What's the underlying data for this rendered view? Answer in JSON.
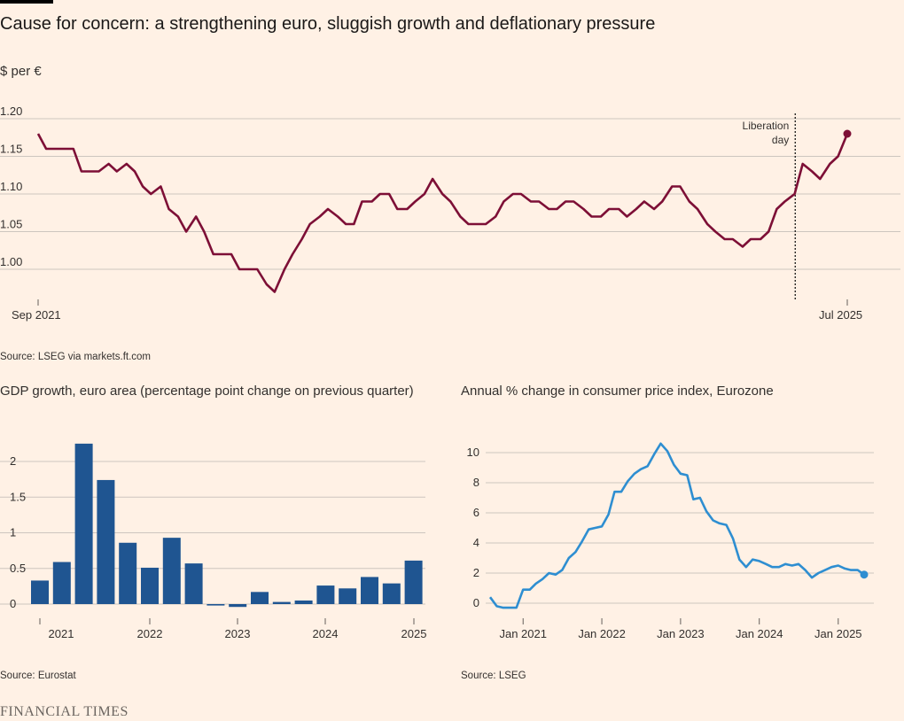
{
  "title": "Cause for concern: a strengthening euro, sluggish growth and deflationary pressure",
  "brand": "FINANCIAL TIMES",
  "colors": {
    "background": "#fff1e5",
    "fx_line": "#7d0f36",
    "gdp_bar": "#1f5591",
    "cpi_line": "#2e8ed1",
    "grid": "#cdc6bf"
  },
  "fx": {
    "unit_label": "$ per €",
    "source": "Source: LSEG via markets.ft.com",
    "annotation": "Liberation day",
    "annotation_lines": [
      "Liberation",
      "day"
    ],
    "y_ticks": [
      "1.20",
      "1.15",
      "1.10",
      "1.05",
      "1.00"
    ],
    "x_ticks": [
      "Sep 2021",
      "Jul 2025"
    ]
  },
  "gdp": {
    "title": "GDP growth, euro area (percentage point change on previous quarter)",
    "source": "Source: Eurostat",
    "y_ticks": [
      "2",
      "1.5",
      "1",
      "0.5",
      "0"
    ],
    "x_ticks": [
      "2021",
      "2022",
      "2023",
      "2024",
      "2025"
    ]
  },
  "cpi": {
    "title": "Annual % change in consumer price index, Eurozone",
    "source": "Source: LSEG",
    "y_ticks": [
      "10",
      "8",
      "6",
      "4",
      "2",
      "0"
    ],
    "x_ticks": [
      "Jan 2021",
      "Jan 2022",
      "Jan 2023",
      "Jan 2024",
      "Jan 2025"
    ]
  },
  "chart_data": [
    {
      "type": "line",
      "title": "Cause for concern: a strengthening euro, sluggish growth and deflationary pressure",
      "ylabel": "$ per €",
      "ylim": [
        0.97,
        1.2
      ],
      "xlim": [
        "2021-09-01",
        "2025-07-01"
      ],
      "grid": true,
      "annotations": [
        {
          "text": "Liberation day",
          "date": "2025-04-02",
          "style": "dotted vertical line"
        }
      ],
      "series": [
        {
          "x": [
            "2021-09-01",
            "2021-09-15",
            "2021-10-01",
            "2021-10-15",
            "2021-11-01",
            "2021-11-15",
            "2021-12-01",
            "2021-12-15",
            "2022-01-01",
            "2022-01-15",
            "2022-02-01",
            "2022-02-15",
            "2022-03-01",
            "2022-03-15",
            "2022-04-01",
            "2022-04-15",
            "2022-05-01",
            "2022-05-15",
            "2022-06-01",
            "2022-06-15",
            "2022-07-01",
            "2022-07-15",
            "2022-08-01",
            "2022-08-15",
            "2022-09-01",
            "2022-09-15",
            "2022-10-01",
            "2022-10-15",
            "2022-11-01",
            "2022-11-15",
            "2022-12-01",
            "2022-12-15",
            "2023-01-01",
            "2023-01-15",
            "2023-02-01",
            "2023-02-15",
            "2023-03-01",
            "2023-03-15",
            "2023-04-01",
            "2023-04-15",
            "2023-05-01",
            "2023-05-15",
            "2023-06-01",
            "2023-06-15",
            "2023-07-01",
            "2023-07-15",
            "2023-08-01",
            "2023-08-15",
            "2023-09-01",
            "2023-09-15",
            "2023-10-01",
            "2023-10-15",
            "2023-11-01",
            "2023-11-15",
            "2023-12-01",
            "2023-12-15",
            "2024-01-01",
            "2024-01-15",
            "2024-02-01",
            "2024-02-15",
            "2024-03-01",
            "2024-03-15",
            "2024-04-01",
            "2024-04-15",
            "2024-05-01",
            "2024-05-15",
            "2024-06-01",
            "2024-06-15",
            "2024-07-01",
            "2024-07-15",
            "2024-08-01",
            "2024-08-15",
            "2024-09-01",
            "2024-09-15",
            "2024-10-01",
            "2024-10-15",
            "2024-11-01",
            "2024-11-15",
            "2024-12-01",
            "2024-12-15",
            "2025-01-01",
            "2025-01-15",
            "2025-02-01",
            "2025-02-15",
            "2025-03-01",
            "2025-03-15",
            "2025-04-01",
            "2025-04-15",
            "2025-05-01",
            "2025-05-15",
            "2025-06-01",
            "2025-06-15",
            "2025-07-01"
          ],
          "y": [
            1.18,
            1.16,
            1.16,
            1.16,
            1.16,
            1.13,
            1.13,
            1.13,
            1.14,
            1.13,
            1.14,
            1.13,
            1.11,
            1.1,
            1.11,
            1.08,
            1.07,
            1.05,
            1.07,
            1.05,
            1.02,
            1.02,
            1.02,
            1.0,
            1.0,
            1.0,
            0.98,
            0.97,
            1.0,
            1.02,
            1.04,
            1.06,
            1.07,
            1.08,
            1.07,
            1.06,
            1.06,
            1.09,
            1.09,
            1.1,
            1.1,
            1.08,
            1.08,
            1.09,
            1.1,
            1.12,
            1.1,
            1.09,
            1.07,
            1.06,
            1.06,
            1.06,
            1.07,
            1.09,
            1.1,
            1.1,
            1.09,
            1.09,
            1.08,
            1.08,
            1.09,
            1.09,
            1.08,
            1.07,
            1.07,
            1.08,
            1.08,
            1.07,
            1.08,
            1.09,
            1.08,
            1.09,
            1.11,
            1.11,
            1.09,
            1.08,
            1.06,
            1.05,
            1.04,
            1.04,
            1.03,
            1.04,
            1.04,
            1.05,
            1.08,
            1.09,
            1.1,
            1.14,
            1.13,
            1.12,
            1.14,
            1.15,
            1.18
          ]
        }
      ]
    },
    {
      "type": "bar",
      "title": "GDP growth, euro area (percentage point change on previous quarter)",
      "ylim": [
        0,
        2.25
      ],
      "grid": true,
      "categories": [
        "2020 Q4",
        "2021 Q1",
        "2021 Q2",
        "2021 Q3",
        "2021 Q4",
        "2022 Q1",
        "2022 Q2",
        "2022 Q3",
        "2022 Q4",
        "2023 Q1",
        "2023 Q2",
        "2023 Q3",
        "2023 Q4",
        "2024 Q1",
        "2024 Q2",
        "2024 Q3",
        "2024 Q4",
        "2025 Q1"
      ],
      "values": [
        0.33,
        0.59,
        2.25,
        1.74,
        0.86,
        0.51,
        0.93,
        0.57,
        -0.02,
        -0.04,
        0.17,
        0.03,
        0.05,
        0.26,
        0.22,
        0.38,
        0.29,
        0.61
      ]
    },
    {
      "type": "line",
      "title": "Annual % change in consumer price index, Eurozone",
      "ylim": [
        0,
        10.6
      ],
      "xlim": [
        "2020-08",
        "2025-05"
      ],
      "grid": true,
      "series": [
        {
          "x": [
            "2020-08",
            "2020-09",
            "2020-10",
            "2020-11",
            "2020-12",
            "2021-01",
            "2021-02",
            "2021-03",
            "2021-04",
            "2021-05",
            "2021-06",
            "2021-07",
            "2021-08",
            "2021-09",
            "2021-10",
            "2021-11",
            "2021-12",
            "2022-01",
            "2022-02",
            "2022-03",
            "2022-04",
            "2022-05",
            "2022-06",
            "2022-07",
            "2022-08",
            "2022-09",
            "2022-10",
            "2022-11",
            "2022-12",
            "2023-01",
            "2023-02",
            "2023-03",
            "2023-04",
            "2023-05",
            "2023-06",
            "2023-07",
            "2023-08",
            "2023-09",
            "2023-10",
            "2023-11",
            "2023-12",
            "2024-01",
            "2024-02",
            "2024-03",
            "2024-04",
            "2024-05",
            "2024-06",
            "2024-07",
            "2024-08",
            "2024-09",
            "2024-10",
            "2024-11",
            "2024-12",
            "2025-01",
            "2025-02",
            "2025-03",
            "2025-04",
            "2025-05"
          ],
          "y": [
            0.4,
            -0.2,
            -0.3,
            -0.3,
            -0.3,
            0.9,
            0.9,
            1.3,
            1.6,
            2.0,
            1.9,
            2.2,
            3.0,
            3.4,
            4.1,
            4.9,
            5.0,
            5.1,
            5.9,
            7.4,
            7.4,
            8.1,
            8.6,
            8.9,
            9.1,
            9.9,
            10.6,
            10.1,
            9.2,
            8.6,
            8.5,
            6.9,
            7.0,
            6.1,
            5.5,
            5.3,
            5.2,
            4.3,
            2.9,
            2.4,
            2.9,
            2.8,
            2.6,
            2.4,
            2.4,
            2.6,
            2.5,
            2.6,
            2.2,
            1.7,
            2.0,
            2.2,
            2.4,
            2.5,
            2.3,
            2.2,
            2.2,
            1.9
          ]
        }
      ]
    }
  ]
}
